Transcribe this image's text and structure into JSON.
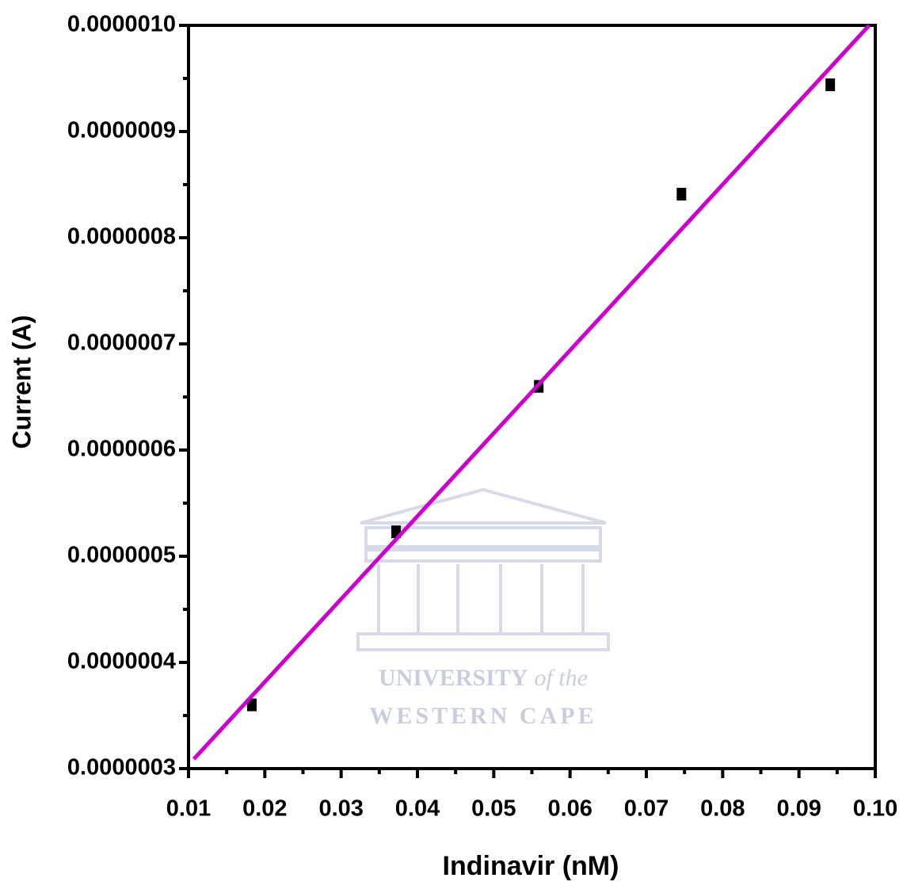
{
  "chart_data": {
    "type": "scatter",
    "x_label": "Indinavir (nM)",
    "y_label": "Current (A)",
    "watermark": [
      "UNIVERSITY",
      "of the",
      "WESTERN CAPE"
    ],
    "xlim": [
      0.01,
      0.1
    ],
    "xticks": [
      0.01,
      0.02,
      0.03,
      0.04,
      0.05,
      0.06,
      0.07,
      0.08,
      0.09,
      {
        "value": 0.1,
        "label": "0.10"
      }
    ],
    "ylim": [
      3e-07,
      1e-06
    ],
    "yticks": [
      {
        "value": 3e-07,
        "label": "0.0000003"
      },
      {
        "value": 4e-07,
        "label": "0.0000004"
      },
      {
        "value": 5e-07,
        "label": "0.0000005"
      },
      {
        "value": 6e-07,
        "label": "0.0000006"
      },
      {
        "value": 7e-07,
        "label": "0.0000007"
      },
      {
        "value": 8e-07,
        "label": "0.0000008"
      },
      {
        "value": 9e-07,
        "label": "0.0000009"
      },
      {
        "value": 1e-06,
        "label": "0.0000010"
      }
    ],
    "series": [
      {
        "kind": "points",
        "color": "#000000",
        "x": [
          0.0183,
          0.0372,
          0.0559,
          0.0746,
          0.0941
        ],
        "values": [
          3.6e-07,
          5.23e-07,
          6.6e-07,
          8.41e-07,
          9.44e-07
        ]
      },
      {
        "kind": "fit",
        "color": "#cc00cc",
        "x": [
          0.0107,
          0.0992
        ],
        "values": [
          3.09e-07,
          1e-06
        ]
      }
    ]
  }
}
